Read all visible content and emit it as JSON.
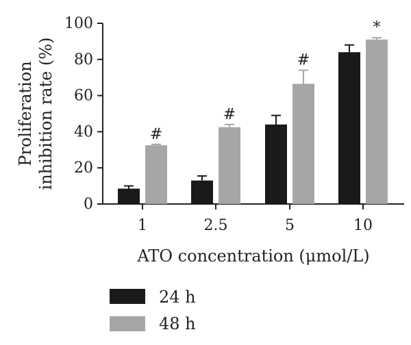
{
  "chart_data": {
    "type": "bar",
    "categories": [
      "1",
      "2.5",
      "5",
      "10"
    ],
    "series": [
      {
        "name": "24 h",
        "color": "#1a1a1a",
        "values": [
          8.5,
          13,
          44,
          84
        ],
        "errors": [
          1.5,
          2.5,
          5,
          4
        ],
        "marks": [
          "",
          "",
          "",
          ""
        ]
      },
      {
        "name": "48 h",
        "color": "#a6a6a6",
        "values": [
          32.5,
          42.5,
          66.5,
          91
        ],
        "errors": [
          0.5,
          1.5,
          7.5,
          1
        ],
        "marks": [
          "#",
          "#",
          "#",
          "*"
        ]
      }
    ],
    "xlabel": "ATO concentration (μmol/L)",
    "ylabel_lines": [
      "Proliferation",
      "inhibition rate (%)"
    ],
    "ylim": [
      0,
      100
    ],
    "yticks": [
      "0",
      "20",
      "40",
      "60",
      "80",
      "100"
    ],
    "legend_position": "bottom-left",
    "grid": false
  }
}
